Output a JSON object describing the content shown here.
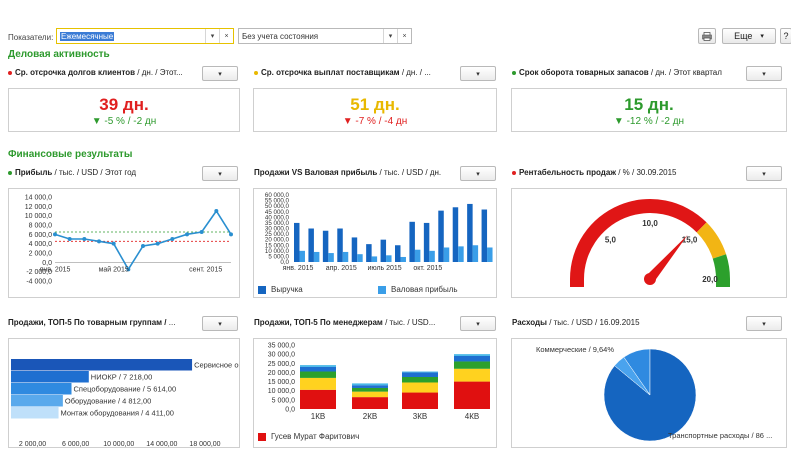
{
  "toolbar": {
    "indicators_label": "Показатели:",
    "period_value": "Ежемесячные",
    "state_value": "Без учета состояния",
    "print_icon": "printer-icon",
    "more_label": "Еще",
    "help_label": "?"
  },
  "sections": {
    "business": "Деловая активность",
    "finance": "Финансовые результаты"
  },
  "kpis": [
    {
      "title": "Ср. отсрочка долгов клиентов",
      "subtitle": " / дн. / Этот...",
      "dot_color": "#e02020",
      "value": "39 дн.",
      "value_color": "#e02020",
      "delta": "▼ -5 % / -2 дн",
      "arrow_color": "#2d9a2d",
      "delta_color": "#2d9a2d"
    },
    {
      "title": "Ср. отсрочка выплат поставщикам",
      "subtitle": " / дн. / ...",
      "dot_color": "#e8b800",
      "value": "51 дн.",
      "value_color": "#e8b800",
      "delta": "▼ -7 % / -4 дн",
      "arrow_color": "#e02020",
      "delta_color": "#e02020"
    },
    {
      "title": "Срок оборота товарных запасов",
      "subtitle": " / дн. / Этот квартал",
      "dot_color": "#2d9a2d",
      "value": "15 дн.",
      "value_color": "#2d9a2d",
      "delta": "▼ -12 % / -2 дн",
      "arrow_color": "#2d9a2d",
      "delta_color": "#2d9a2d"
    }
  ],
  "panels": {
    "profit": {
      "title": "Прибыль",
      "subtitle": " / тыс. / USD / Этот год",
      "dot_color": "#2d9a2d"
    },
    "sales_vs": {
      "title": "Продажи VS Валовая прибыль",
      "subtitle": " / тыс. / USD / дн."
    },
    "profitability": {
      "title": "Рентабельность продаж",
      "subtitle": " / % / 30.09.2015",
      "dot_color": "#e02020"
    },
    "top5_groups": {
      "title": "Продажи, ТОП-5 По товарным группам /",
      "subtitle": " ..."
    },
    "top5_managers": {
      "title": "Продажи, ТОП-5 По менеджерам",
      "subtitle": " / тыс. / USD..."
    },
    "expenses": {
      "title": "Расходы",
      "subtitle": " / тыс. / USD / 16.09.2015"
    }
  },
  "chart_data": [
    {
      "type": "line",
      "name": "profit",
      "y_ticks": [
        "14 000,0",
        "12 000,0",
        "10 000,0",
        "8 000,0",
        "6 000,0",
        "4 000,0",
        "2 000,0",
        "0,0",
        "-2 000,0",
        "-4 000,0"
      ],
      "x_ticks": [
        "янв. 2015",
        "май 2015",
        "сент. 2015"
      ],
      "ylim": [
        -4000,
        14000
      ],
      "values": [
        6000,
        5000,
        5000,
        4500,
        4000,
        -1500,
        3500,
        4000,
        5000,
        6000,
        6500,
        11000,
        6000
      ],
      "reference_lines": [
        6500,
        4500
      ]
    },
    {
      "type": "bar",
      "name": "sales_vs_gross",
      "y_ticks": [
        "60 000,0",
        "55 000,0",
        "50 000,0",
        "45 000,0",
        "40 000,0",
        "35 000,0",
        "30 000,0",
        "25 000,0",
        "20 000,0",
        "15 000,0",
        "10 000,0",
        "5 000,0",
        "0,0"
      ],
      "x_ticks": [
        "янв. 2015",
        "апр. 2015",
        "июль 2015",
        "окт. 2015"
      ],
      "ylim": [
        0,
        60000
      ],
      "series": [
        {
          "name": "Выручка",
          "color": "#1565c0",
          "values": [
            35000,
            30000,
            28000,
            30000,
            22000,
            16000,
            20000,
            15000,
            36000,
            35000,
            46000,
            49000,
            52000,
            47000
          ]
        },
        {
          "name": "Валовая прибыль",
          "color": "#3a9ee8",
          "values": [
            10000,
            9000,
            8000,
            9000,
            7000,
            5000,
            6000,
            4500,
            11000,
            10000,
            13000,
            14000,
            15000,
            13000
          ]
        }
      ]
    },
    {
      "type": "gauge",
      "name": "profitability",
      "labels": [
        "5,0",
        "10,0",
        "15,0",
        "20,0"
      ],
      "range": [
        0,
        20
      ],
      "value": 14.5
    },
    {
      "type": "bar",
      "name": "top5_groups",
      "orientation": "horizontal",
      "categories": [
        "Сервисное обслуживание / ...",
        "НИОКР / 7 218,00",
        "Спецоборудование / 5 614,00",
        "Оборудование / 4 812,00",
        "Монтаж оборудования / 4 411,00"
      ],
      "values": [
        16800,
        7218,
        5614,
        4812,
        4411
      ],
      "colors": [
        "#1a56b8",
        "#1f6fd0",
        "#2f8ae0",
        "#59a9ec",
        "#bfe0fa"
      ],
      "x_ticks": [
        "2 000,00",
        "6 000,00",
        "10 000,00",
        "14 000,00",
        "18 000,00"
      ],
      "xlim": [
        0,
        18000
      ]
    },
    {
      "type": "bar",
      "name": "top5_managers",
      "stacked": true,
      "categories": [
        "1КВ",
        "2КВ",
        "3КВ",
        "4КВ"
      ],
      "y_ticks": [
        "35 000,0",
        "30 000,0",
        "25 000,0",
        "20 000,0",
        "15 000,0",
        "10 000,0",
        "5 000,0",
        "0,0"
      ],
      "ylim": [
        0,
        35000
      ],
      "series": [
        {
          "name": "Гусев Мурат Фаритович",
          "color": "#e01010",
          "values": [
            10500,
            6500,
            9000,
            15000
          ]
        },
        {
          "name": "",
          "color": "#ffd21f",
          "values": [
            6500,
            3000,
            5500,
            7000
          ]
        },
        {
          "name": "",
          "color": "#2ca02c",
          "values": [
            3500,
            2000,
            3000,
            4000
          ]
        },
        {
          "name": "",
          "color": "#1e6fd0",
          "values": [
            2500,
            1500,
            2500,
            3000
          ]
        },
        {
          "name": "",
          "color": "#48b8e8",
          "values": [
            1000,
            1000,
            500,
            1000
          ]
        }
      ]
    },
    {
      "type": "pie",
      "name": "expenses",
      "slices": [
        {
          "label": "Коммерческие / 9,64%",
          "value": 9.64,
          "color": "#2f8ae0"
        },
        {
          "label": "Транспортные расходы / 86 ...",
          "value": 86.0,
          "color": "#1565c0"
        },
        {
          "label": "",
          "value": 4.36,
          "color": "#4aa3ee"
        }
      ]
    }
  ]
}
